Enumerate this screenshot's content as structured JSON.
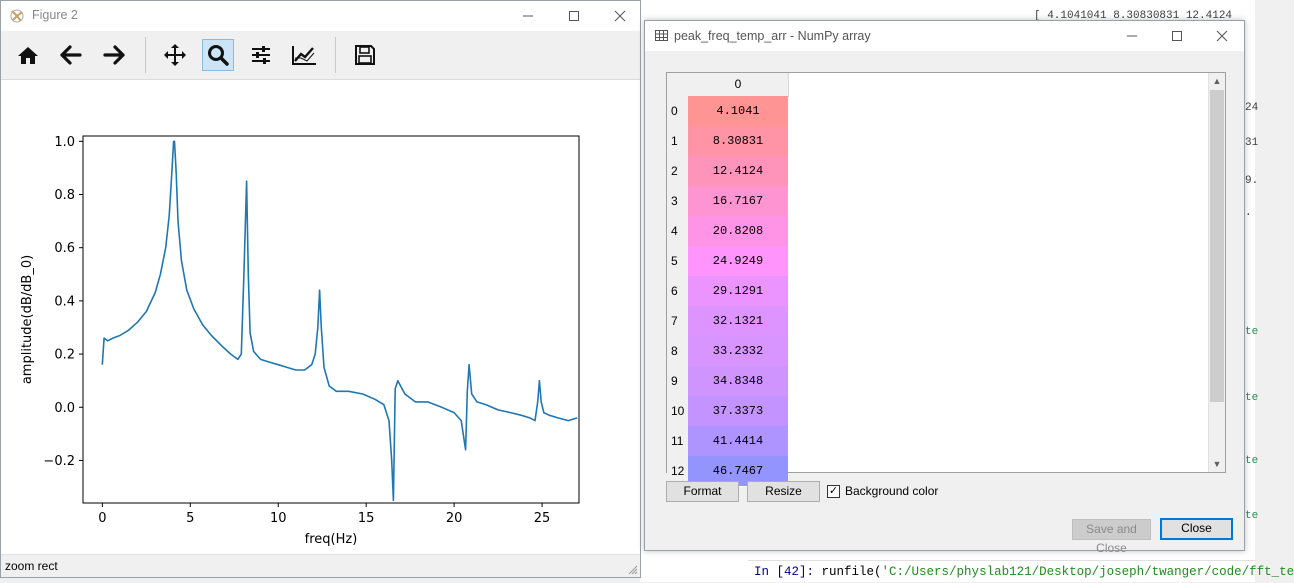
{
  "figure_window": {
    "title": "Figure 2",
    "toolbar": {
      "home_icon": "home-icon",
      "back_icon": "arrow-left-icon",
      "forward_icon": "arrow-right-icon",
      "pan_icon": "move-icon",
      "zoom_icon": "zoom-icon",
      "subplots_icon": "sliders-icon",
      "edit_axes_icon": "line-chart-icon",
      "save_icon": "save-icon",
      "active_tool": "zoom"
    },
    "status": "zoom rect"
  },
  "chart_data": {
    "type": "line",
    "title": "",
    "xlabel": "freq(Hz)",
    "ylabel": "amplitude(dB/dB_0)",
    "xlim": [
      -1.1,
      27.1
    ],
    "ylim": [
      -0.36,
      1.02
    ],
    "x_ticks": [
      "0",
      "5",
      "10",
      "15",
      "20",
      "25"
    ],
    "x_tick_values": [
      0,
      5,
      10,
      15,
      20,
      25
    ],
    "y_ticks": [
      "1.0",
      "0.8",
      "0.6",
      "0.4",
      "0.2",
      "0.0",
      "−0.2"
    ],
    "y_tick_values": [
      1.0,
      0.8,
      0.6,
      0.4,
      0.2,
      0.0,
      -0.2
    ],
    "grid": false,
    "line_color": "#1f77b4",
    "series": [
      {
        "x": [
          0.0,
          0.1,
          0.3,
          0.6,
          1.0,
          1.5,
          2.0,
          2.5,
          3.0,
          3.3,
          3.6,
          3.8,
          3.95,
          4.05,
          4.1,
          4.2,
          4.3,
          4.5,
          4.8,
          5.2,
          5.7,
          6.2,
          6.8,
          7.3,
          7.7,
          7.9,
          8.05,
          8.2,
          8.3,
          8.4,
          8.6,
          9.0,
          9.5,
          10.0,
          10.5,
          11.0,
          11.5,
          11.9,
          12.1,
          12.25,
          12.35,
          12.45,
          12.6,
          12.9,
          13.3,
          14.0,
          14.8,
          15.5,
          16.0,
          16.3,
          16.45,
          16.55,
          16.65,
          16.8,
          17.2,
          17.8,
          18.5,
          19.3,
          20.0,
          20.4,
          20.65,
          20.75,
          20.85,
          21.0,
          21.3,
          21.8,
          22.5,
          23.2,
          23.8,
          24.3,
          24.6,
          24.75,
          24.85,
          24.95,
          25.1,
          25.4,
          25.9,
          26.5,
          27.0
        ],
        "y": [
          0.16,
          0.26,
          0.25,
          0.26,
          0.27,
          0.29,
          0.32,
          0.36,
          0.43,
          0.5,
          0.6,
          0.72,
          0.88,
          1.0,
          1.0,
          0.88,
          0.7,
          0.55,
          0.44,
          0.37,
          0.31,
          0.27,
          0.23,
          0.2,
          0.18,
          0.2,
          0.5,
          0.85,
          0.5,
          0.28,
          0.21,
          0.18,
          0.17,
          0.16,
          0.15,
          0.14,
          0.14,
          0.16,
          0.2,
          0.3,
          0.44,
          0.3,
          0.15,
          0.08,
          0.06,
          0.06,
          0.05,
          0.03,
          0.01,
          -0.05,
          -0.2,
          -0.35,
          0.07,
          0.1,
          0.05,
          0.02,
          0.02,
          0.0,
          -0.02,
          -0.05,
          -0.16,
          0.06,
          0.16,
          0.05,
          0.02,
          0.01,
          -0.01,
          -0.02,
          -0.03,
          -0.04,
          -0.05,
          0.02,
          0.1,
          0.02,
          -0.02,
          -0.03,
          -0.04,
          -0.05,
          -0.04
        ]
      }
    ]
  },
  "array_dialog": {
    "title": "peak_freq_temp_arr - NumPy array",
    "column_header": "0",
    "rows": [
      {
        "index": "0",
        "value": "4.1041",
        "color": "#ff9494"
      },
      {
        "index": "1",
        "value": "8.30831",
        "color": "#ff94a6"
      },
      {
        "index": "2",
        "value": "12.4124",
        "color": "#ff94bb"
      },
      {
        "index": "3",
        "value": "16.7167",
        "color": "#ff94d2"
      },
      {
        "index": "4",
        "value": "20.8208",
        "color": "#ff94e7"
      },
      {
        "index": "5",
        "value": "24.9249",
        "color": "#ff94fd"
      },
      {
        "index": "6",
        "value": "29.1291",
        "color": "#eb94ff"
      },
      {
        "index": "7",
        "value": "32.1321",
        "color": "#de94ff"
      },
      {
        "index": "8",
        "value": "33.2332",
        "color": "#d894ff"
      },
      {
        "index": "9",
        "value": "34.8348",
        "color": "#d094ff"
      },
      {
        "index": "10",
        "value": "37.3373",
        "color": "#c394ff"
      },
      {
        "index": "11",
        "value": "41.4414",
        "color": "#ad94ff"
      },
      {
        "index": "12",
        "value": "46.7467",
        "color": "#9494ff"
      }
    ],
    "buttons": {
      "format": "Format",
      "resize": "Resize",
      "background_color_label": "Background color",
      "background_color_checked": true,
      "save_and_close": "Save and Close",
      "close": "Close"
    }
  },
  "background": {
    "variable_preview": "[ 4.1041041   8.30830831 12.4124",
    "right_fragments": [
      "24",
      "31",
      "9.",
      ".",
      "te",
      "te",
      "te",
      "te"
    ],
    "console_prompt": "In [42]:",
    "console_command": "runfile(",
    "console_path": "'C:/Users/physlab121/Desktop/joseph/twanger/code/fft_te"
  }
}
